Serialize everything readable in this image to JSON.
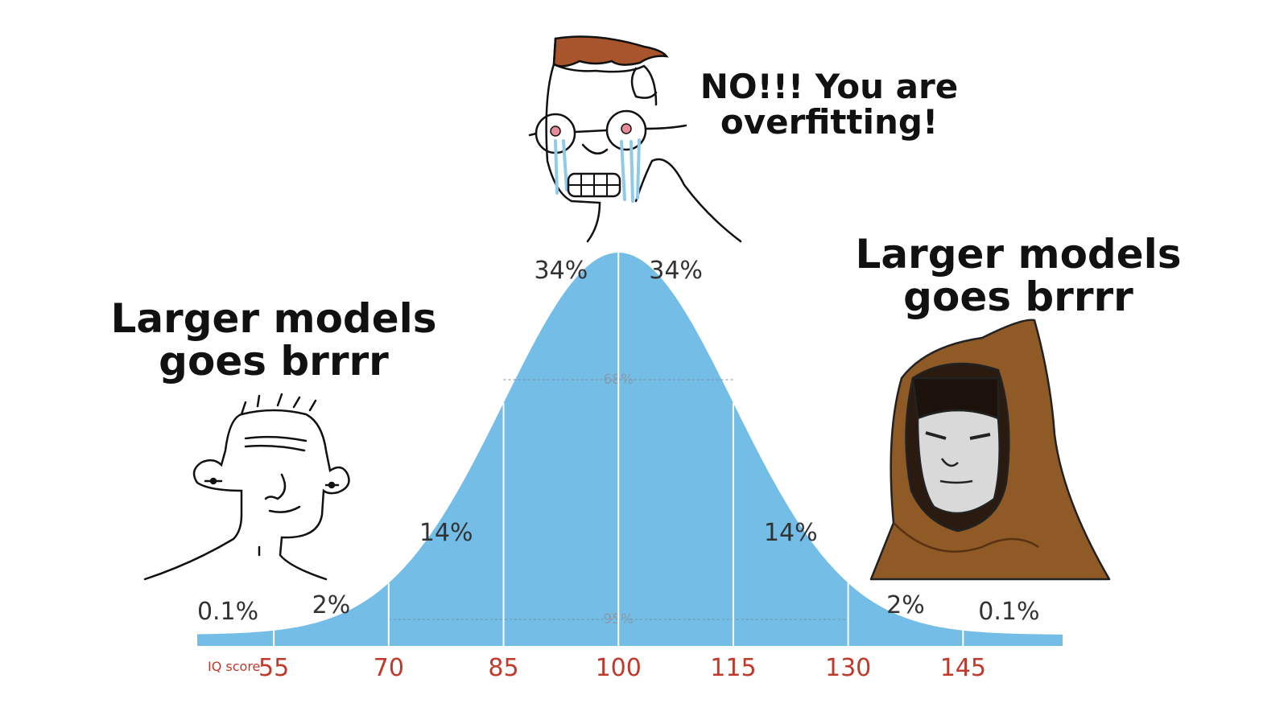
{
  "meme": {
    "left_caption": [
      "Larger models",
      "goes brrrr"
    ],
    "center_caption": [
      "NO!!! You are",
      "overfitting!"
    ],
    "right_caption": [
      "Larger models",
      "goes brrrr"
    ]
  },
  "chart_data": {
    "type": "area",
    "title": "",
    "xlabel": "IQ score",
    "ylabel": "",
    "distribution": "normal",
    "mean": 100,
    "sd": 15,
    "x_ticks": [
      55,
      70,
      85,
      100,
      115,
      130,
      145
    ],
    "xlim": [
      45,
      158
    ],
    "region_labels": [
      {
        "x": 49,
        "label": "0.1%"
      },
      {
        "x": 62.5,
        "label": "2%"
      },
      {
        "x": 77.5,
        "label": "14%"
      },
      {
        "x": 92.5,
        "label": "34%"
      },
      {
        "x": 107.5,
        "label": "34%"
      },
      {
        "x": 122.5,
        "label": "14%"
      },
      {
        "x": 137.5,
        "label": "2%"
      },
      {
        "x": 151,
        "label": "0.1%"
      }
    ],
    "bands": [
      {
        "from": 85,
        "to": 115,
        "label": "68%"
      },
      {
        "from": 70,
        "to": 130,
        "label": "95%"
      }
    ],
    "colors": {
      "fill": "#74bde6",
      "tick_label": "#c0392b",
      "divider": "#ffffff"
    }
  }
}
